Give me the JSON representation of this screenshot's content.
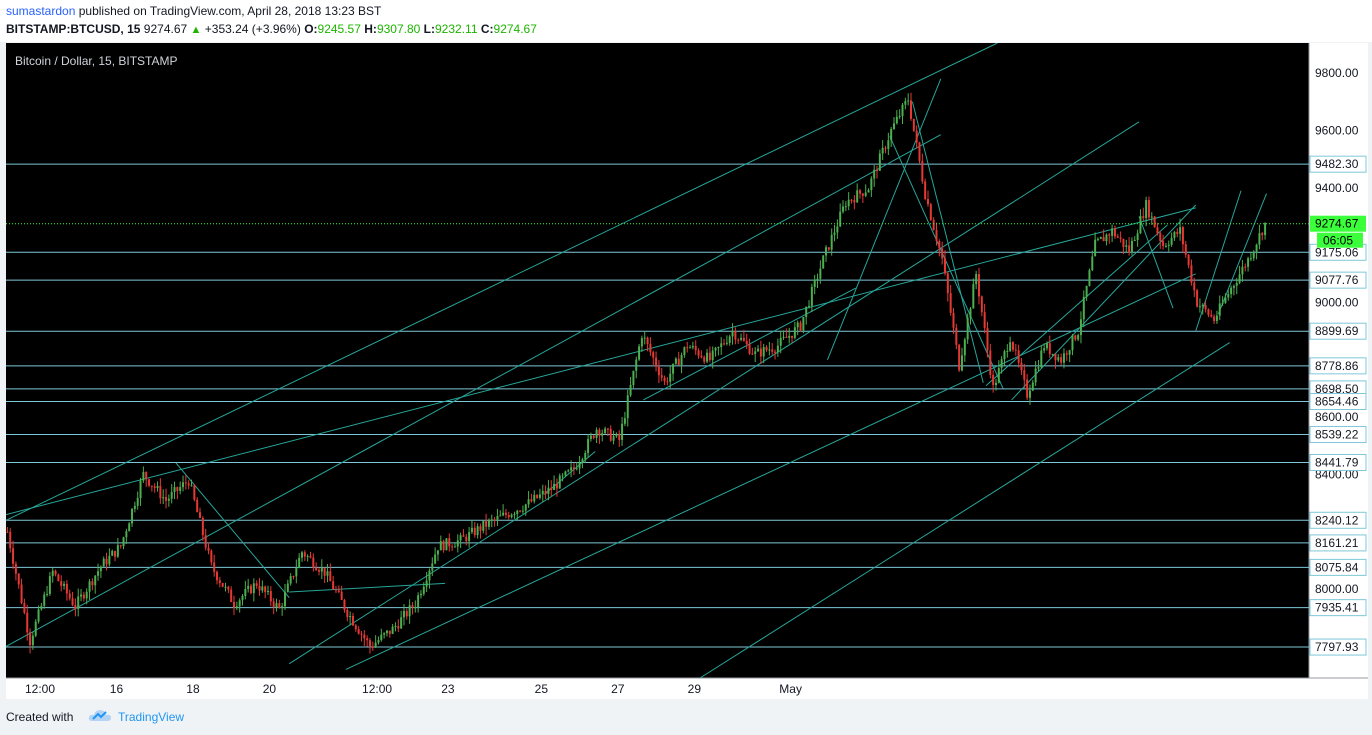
{
  "header": {
    "author": "sumastardon",
    "published_text": "published on TradingView.com, April 28, 2018 13:23 BST",
    "symbol": "BITSTAMP:BTCUSD, 15",
    "last_price": "9274.67",
    "change": "+353.24 (+3.96%)",
    "open_label": "O:",
    "open": "9245.57",
    "high_label": "H:",
    "high": "9307.80",
    "low_label": "L:",
    "low": "9232.11",
    "close_label": "C:",
    "close": "9274.67"
  },
  "footer": {
    "created_with": "Created with",
    "brand": "TradingView",
    "logo_icon": "tradingview-cloud-icon"
  },
  "colors": {
    "background": "#000000",
    "candle_up": "#4caf50",
    "candle_down": "#e53935",
    "drawing_lines": "#26a69a",
    "horizontal_levels": "#7ec8d8",
    "current_price": "#3aff3a",
    "axis_text": "#131722"
  },
  "chart_data": {
    "type": "candlestick",
    "title": "Bitcoin / Dollar, 15, BITSTAMP",
    "x_tick_labels": [
      "12:00",
      "16",
      "18",
      "20",
      "12:00",
      "23",
      "25",
      "27",
      "29",
      "May"
    ],
    "y_tick_labels": [
      "9800.00",
      "9600.00",
      "9400.00",
      "9000.00",
      "8600.00",
      "8400.00",
      "8000.00"
    ],
    "ylim": [
      7690,
      9905
    ],
    "horizontal_levels": [
      9482.3,
      9175.06,
      9077.76,
      8899.69,
      8778.86,
      8698.5,
      8654.46,
      8539.22,
      8441.79,
      8240.12,
      8161.21,
      8075.84,
      7935.41,
      7797.93
    ],
    "level_labels": [
      "9482.30",
      "9175.06",
      "9077.76",
      "8899.69",
      "8778.86",
      "8698.50",
      "8654.46",
      "8539.22",
      "8441.79",
      "8240.12",
      "8161.21",
      "8075.84",
      "7935.41",
      "7797.93"
    ],
    "current_price": 9274.67,
    "current_price_label": "9274.67",
    "countdown_label": "06:05",
    "price_path": [
      [
        0,
        8200
      ],
      [
        8,
        7820
      ],
      [
        16,
        8060
      ],
      [
        24,
        7940
      ],
      [
        33,
        8080
      ],
      [
        40,
        8150
      ],
      [
        48,
        8400
      ],
      [
        56,
        8310
      ],
      [
        64,
        8380
      ],
      [
        72,
        8080
      ],
      [
        80,
        7950
      ],
      [
        88,
        8020
      ],
      [
        96,
        7930
      ],
      [
        104,
        8130
      ],
      [
        112,
        8060
      ],
      [
        120,
        7920
      ],
      [
        128,
        7800
      ],
      [
        136,
        7860
      ],
      [
        144,
        7950
      ],
      [
        152,
        8150
      ],
      [
        160,
        8170
      ],
      [
        168,
        8220
      ],
      [
        176,
        8260
      ],
      [
        184,
        8300
      ],
      [
        192,
        8350
      ],
      [
        200,
        8420
      ],
      [
        208,
        8560
      ],
      [
        216,
        8520
      ],
      [
        224,
        8890
      ],
      [
        232,
        8720
      ],
      [
        240,
        8850
      ],
      [
        248,
        8800
      ],
      [
        256,
        8900
      ],
      [
        264,
        8820
      ],
      [
        272,
        8850
      ],
      [
        280,
        8920
      ],
      [
        288,
        9150
      ],
      [
        296,
        9350
      ],
      [
        304,
        9400
      ],
      [
        312,
        9600
      ],
      [
        318,
        9710
      ],
      [
        324,
        9380
      ],
      [
        330,
        9150
      ],
      [
        336,
        8780
      ],
      [
        342,
        9100
      ],
      [
        348,
        8700
      ],
      [
        354,
        8880
      ],
      [
        360,
        8680
      ],
      [
        366,
        8850
      ],
      [
        372,
        8800
      ],
      [
        378,
        8900
      ],
      [
        384,
        9200
      ],
      [
        390,
        9250
      ],
      [
        396,
        9180
      ],
      [
        402,
        9340
      ],
      [
        408,
        9200
      ],
      [
        414,
        9250
      ],
      [
        420,
        9000
      ],
      [
        426,
        8940
      ],
      [
        432,
        9050
      ],
      [
        438,
        9150
      ],
      [
        444,
        9274.67
      ]
    ],
    "line_series": [
      {
        "points": [
          [
            0,
            8240
          ],
          [
            350,
            9905
          ]
        ]
      },
      {
        "points": [
          [
            0,
            7800
          ],
          [
            330,
            9585
          ]
        ]
      },
      {
        "points": [
          [
            100,
            7740
          ],
          [
            400,
            9630
          ]
        ]
      },
      {
        "points": [
          [
            120,
            7720
          ],
          [
            420,
            9100
          ]
        ]
      },
      {
        "points": [
          [
            245,
            7690
          ],
          [
            432,
            8860
          ]
        ]
      },
      {
        "points": [
          [
            0,
            8260
          ],
          [
            420,
            9330
          ]
        ]
      },
      {
        "points": [
          [
            60,
            8440
          ],
          [
            100,
            7970
          ]
        ]
      },
      {
        "points": [
          [
            100,
            7990
          ],
          [
            155,
            8020
          ]
        ]
      },
      {
        "points": [
          [
            190,
            8330
          ],
          [
            208,
            8480
          ]
        ]
      },
      {
        "points": [
          [
            225,
            8660
          ],
          [
            300,
            9050
          ]
        ]
      },
      {
        "points": [
          [
            290,
            8800
          ],
          [
            330,
            9780
          ]
        ]
      },
      {
        "points": [
          [
            320,
            9700
          ],
          [
            345,
            8720
          ]
        ]
      },
      {
        "points": [
          [
            312,
            9580
          ],
          [
            352,
            8700
          ]
        ]
      },
      {
        "points": [
          [
            346,
            8710
          ],
          [
            410,
            9270
          ]
        ]
      },
      {
        "points": [
          [
            355,
            8660
          ],
          [
            420,
            9340
          ]
        ]
      },
      {
        "points": [
          [
            400,
            9300
          ],
          [
            412,
            8980
          ]
        ]
      },
      {
        "points": [
          [
            420,
            8900
          ],
          [
            436,
            9390
          ]
        ]
      },
      {
        "points": [
          [
            428,
            8960
          ],
          [
            445,
            9380
          ]
        ]
      }
    ]
  }
}
